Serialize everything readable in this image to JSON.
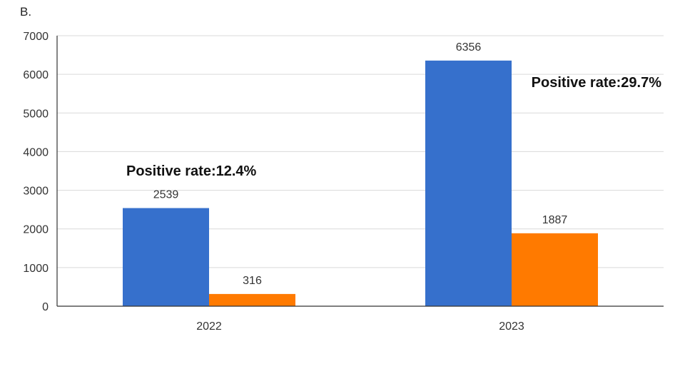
{
  "panel_label": "B.",
  "chart_data": {
    "type": "bar",
    "categories": [
      "2022",
      "2023"
    ],
    "series": [
      {
        "values": [
          2539,
          6356
        ],
        "color": "#3670CC"
      },
      {
        "values": [
          316,
          1887
        ],
        "color": "#FF7A00"
      }
    ],
    "ylim": [
      0,
      7000
    ],
    "yticks": [
      0,
      1000,
      2000,
      3000,
      4000,
      5000,
      6000,
      7000
    ],
    "grid": true,
    "annotations": [
      {
        "category": "2022",
        "text": "Positive rate:12.4%"
      },
      {
        "category": "2023",
        "text": "Positive rate:29.7%"
      }
    ]
  }
}
